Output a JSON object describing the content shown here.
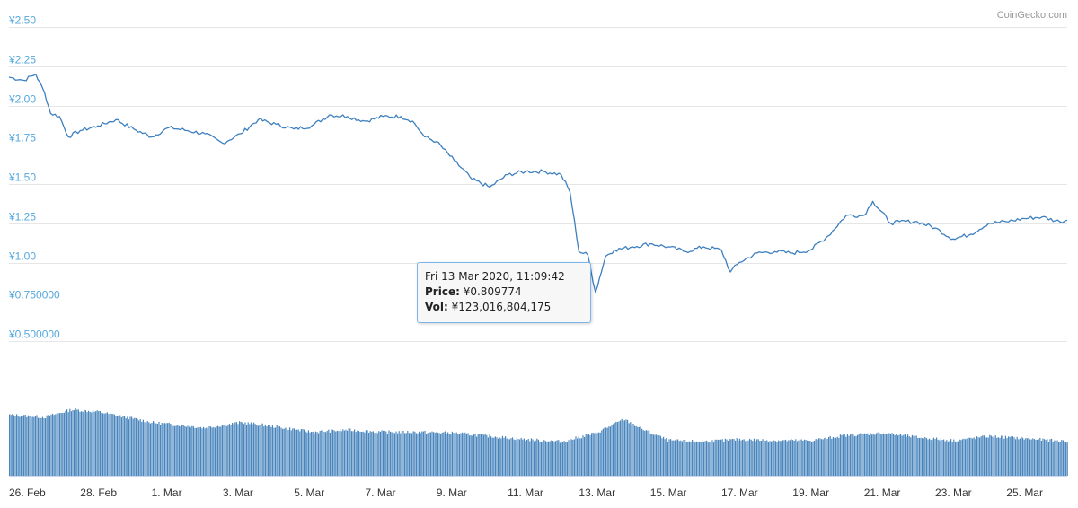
{
  "credit": "CoinGecko.com",
  "colors": {
    "line": "#3d7fbf",
    "volume": "#4a86bd",
    "grid": "#e6e6e6",
    "ylabel": "#55a8dd",
    "crosshair": "#c0c0c0"
  },
  "tooltip": {
    "date": "Fri 13 Mar 2020, 11:09:42",
    "price_label": "Price:",
    "price_value": "¥0.809774",
    "vol_label": "Vol:",
    "vol_value": "¥123,016,804,175"
  },
  "chart_data": [
    {
      "type": "line",
      "title": "",
      "y_ticks": [
        "¥0.500000",
        "¥0.750000",
        "¥1.00",
        "¥1.25",
        "¥1.50",
        "¥1.75",
        "¥2.00",
        "¥2.25",
        "¥2.50"
      ],
      "ylim": [
        0.5,
        2.5
      ],
      "x_range": [
        "2020-02-26",
        "2020-03-26T17:00"
      ],
      "x_ticks": [
        "26. Feb",
        "28. Feb",
        "1. Mar",
        "3. Mar",
        "5. Mar",
        "7. Mar",
        "9. Mar",
        "11. Mar",
        "13. Mar",
        "15. Mar",
        "17. Mar",
        "19. Mar",
        "21. Mar",
        "23. Mar",
        "25. Mar"
      ],
      "x_tick_dates": [
        "2020-02-26",
        "2020-02-28",
        "2020-03-01",
        "2020-03-03",
        "2020-03-05",
        "2020-03-07",
        "2020-03-09",
        "2020-03-11",
        "2020-03-13",
        "2020-03-15",
        "2020-03-17",
        "2020-03-19",
        "2020-03-21",
        "2020-03-23",
        "2020-03-25"
      ],
      "series": [
        {
          "points": [
            [
              "2020-02-26T00:00",
              2.18
            ],
            [
              "2020-02-26T10:00",
              2.16
            ],
            [
              "2020-02-26T18:00",
              2.2
            ],
            [
              "2020-02-27T00:00",
              2.08
            ],
            [
              "2020-02-27T04:00",
              1.95
            ],
            [
              "2020-02-27T10:00",
              1.93
            ],
            [
              "2020-02-27T16:00",
              1.8
            ],
            [
              "2020-02-28T00:00",
              1.84
            ],
            [
              "2020-02-28T12:00",
              1.87
            ],
            [
              "2020-02-29T00:00",
              1.91
            ],
            [
              "2020-02-29T12:00",
              1.85
            ],
            [
              "2020-03-01T00:00",
              1.8
            ],
            [
              "2020-03-01T12:00",
              1.86
            ],
            [
              "2020-03-02T00:00",
              1.84
            ],
            [
              "2020-03-02T12:00",
              1.82
            ],
            [
              "2020-03-03T00:00",
              1.76
            ],
            [
              "2020-03-03T12:00",
              1.82
            ],
            [
              "2020-03-04T00:00",
              1.91
            ],
            [
              "2020-03-04T12:00",
              1.88
            ],
            [
              "2020-03-05T00:00",
              1.85
            ],
            [
              "2020-03-05T12:00",
              1.87
            ],
            [
              "2020-03-06T00:00",
              1.94
            ],
            [
              "2020-03-06T12:00",
              1.93
            ],
            [
              "2020-03-07T00:00",
              1.9
            ],
            [
              "2020-03-07T12:00",
              1.93
            ],
            [
              "2020-03-08T00:00",
              1.93
            ],
            [
              "2020-03-08T08:00",
              1.9
            ],
            [
              "2020-03-08T16:00",
              1.8
            ],
            [
              "2020-03-09T00:00",
              1.77
            ],
            [
              "2020-03-09T12:00",
              1.65
            ],
            [
              "2020-03-10T00:00",
              1.53
            ],
            [
              "2020-03-10T12:00",
              1.48
            ],
            [
              "2020-03-11T00:00",
              1.56
            ],
            [
              "2020-03-11T12:00",
              1.58
            ],
            [
              "2020-03-12T00:00",
              1.58
            ],
            [
              "2020-03-12T12:00",
              1.56
            ],
            [
              "2020-03-12T18:00",
              1.45
            ],
            [
              "2020-03-13T00:00",
              1.07
            ],
            [
              "2020-03-13T06:00",
              1.05
            ],
            [
              "2020-03-13T11:09",
              0.81
            ],
            [
              "2020-03-13T18:00",
              1.04
            ],
            [
              "2020-03-14T00:00",
              1.08
            ],
            [
              "2020-03-14T12:00",
              1.1
            ],
            [
              "2020-03-15T00:00",
              1.12
            ],
            [
              "2020-03-15T12:00",
              1.1
            ],
            [
              "2020-03-16T00:00",
              1.07
            ],
            [
              "2020-03-16T12:00",
              1.1
            ],
            [
              "2020-03-17T00:00",
              1.08
            ],
            [
              "2020-03-17T06:00",
              0.94
            ],
            [
              "2020-03-17T12:00",
              1.0
            ],
            [
              "2020-03-18T00:00",
              1.06
            ],
            [
              "2020-03-18T12:00",
              1.07
            ],
            [
              "2020-03-19T00:00",
              1.06
            ],
            [
              "2020-03-19T12:00",
              1.08
            ],
            [
              "2020-03-20T00:00",
              1.17
            ],
            [
              "2020-03-20T12:00",
              1.3
            ],
            [
              "2020-03-21T00:00",
              1.3
            ],
            [
              "2020-03-21T06:00",
              1.39
            ],
            [
              "2020-03-21T18:00",
              1.25
            ],
            [
              "2020-03-22T00:00",
              1.26
            ],
            [
              "2020-03-22T12:00",
              1.26
            ],
            [
              "2020-03-23T00:00",
              1.22
            ],
            [
              "2020-03-23T12:00",
              1.15
            ],
            [
              "2020-03-24T00:00",
              1.18
            ],
            [
              "2020-03-24T12:00",
              1.25
            ],
            [
              "2020-03-25T00:00",
              1.26
            ],
            [
              "2020-03-25T12:00",
              1.28
            ],
            [
              "2020-03-26T00:00",
              1.29
            ],
            [
              "2020-03-26T12:00",
              1.26
            ],
            [
              "2020-03-26T17:00",
              1.27
            ]
          ]
        }
      ]
    },
    {
      "type": "bar",
      "title": "",
      "x_range": [
        "2020-02-26",
        "2020-03-26T17:00"
      ],
      "y_axis_labels": "none",
      "series": [
        {
          "values_relative": [
            [
              "2020-02-26T00:00",
              0.57
            ],
            [
              "2020-02-27T00:00",
              0.55
            ],
            [
              "2020-02-27T18:00",
              0.62
            ],
            [
              "2020-02-28T12:00",
              0.6
            ],
            [
              "2020-03-01T00:00",
              0.5
            ],
            [
              "2020-03-02T12:00",
              0.45
            ],
            [
              "2020-03-03T12:00",
              0.5
            ],
            [
              "2020-03-04T12:00",
              0.46
            ],
            [
              "2020-03-05T12:00",
              0.41
            ],
            [
              "2020-03-06T12:00",
              0.43
            ],
            [
              "2020-03-07T12:00",
              0.41
            ],
            [
              "2020-03-08T12:00",
              0.41
            ],
            [
              "2020-03-09T12:00",
              0.4
            ],
            [
              "2020-03-10T12:00",
              0.37
            ],
            [
              "2020-03-11T12:00",
              0.34
            ],
            [
              "2020-03-12T12:00",
              0.32
            ],
            [
              "2020-03-13T11:09",
              0.4
            ],
            [
              "2020-03-14T06:00",
              0.53
            ],
            [
              "2020-03-14T18:00",
              0.44
            ],
            [
              "2020-03-15T12:00",
              0.33
            ],
            [
              "2020-03-16T12:00",
              0.32
            ],
            [
              "2020-03-17T12:00",
              0.34
            ],
            [
              "2020-03-18T12:00",
              0.33
            ],
            [
              "2020-03-19T12:00",
              0.33
            ],
            [
              "2020-03-20T12:00",
              0.38
            ],
            [
              "2020-03-21T12:00",
              0.4
            ],
            [
              "2020-03-22T12:00",
              0.36
            ],
            [
              "2020-03-23T12:00",
              0.33
            ],
            [
              "2020-03-24T12:00",
              0.37
            ],
            [
              "2020-03-25T12:00",
              0.35
            ],
            [
              "2020-03-26T17:00",
              0.32
            ]
          ]
        }
      ]
    }
  ]
}
